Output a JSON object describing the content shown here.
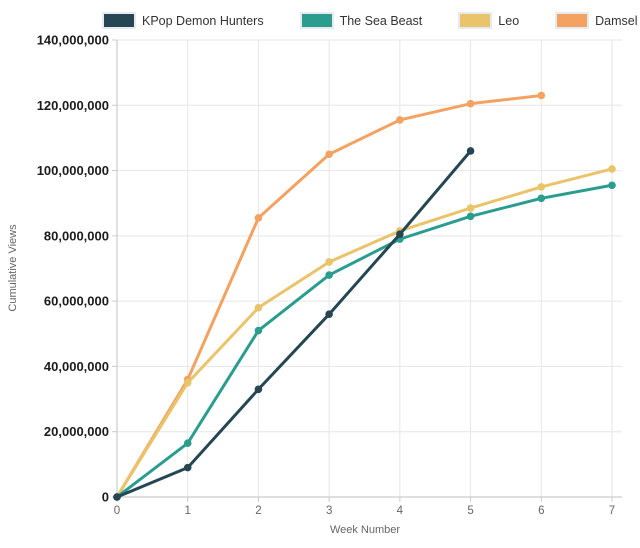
{
  "chart_data": {
    "type": "line",
    "title": "",
    "xlabel": "Week Number",
    "ylabel": "Cumulative Views",
    "xlim": [
      0,
      7
    ],
    "ylim": [
      0,
      140000000
    ],
    "grid": true,
    "legend_position": "top",
    "x_ticks": [
      0,
      1,
      2,
      3,
      4,
      5,
      6,
      7
    ],
    "x_tick_labels": [
      "0",
      "1",
      "2",
      "3",
      "4",
      "5",
      "6",
      "7"
    ],
    "y_ticks": [
      0,
      20000000,
      40000000,
      60000000,
      80000000,
      100000000,
      120000000,
      140000000
    ],
    "y_tick_labels": [
      "0",
      "20,000,000",
      "40,000,000",
      "60,000,000",
      "80,000,000",
      "100,000,000",
      "120,000,000",
      "140,000,000"
    ],
    "series": [
      {
        "name": "KPop Demon Hunters",
        "color": "#264653",
        "x": [
          0,
          1,
          2,
          3,
          4,
          5
        ],
        "values": [
          0,
          9000000,
          33000000,
          56000000,
          80500000,
          106000000
        ]
      },
      {
        "name": "The Sea Beast",
        "color": "#2a9d8f",
        "x": [
          0,
          1,
          2,
          3,
          4,
          5,
          6,
          7
        ],
        "values": [
          0,
          16500000,
          51000000,
          68000000,
          79000000,
          86000000,
          91500000,
          95500000
        ]
      },
      {
        "name": "Leo",
        "color": "#e9c46a",
        "x": [
          0,
          1,
          2,
          3,
          4,
          5,
          6,
          7
        ],
        "values": [
          0,
          35000000,
          58000000,
          72000000,
          81500000,
          88500000,
          95000000,
          100500000
        ]
      },
      {
        "name": "Damsel",
        "color": "#f4a261",
        "x": [
          0,
          1,
          2,
          3,
          4,
          5,
          6
        ],
        "values": [
          0,
          36000000,
          85500000,
          105000000,
          115500000,
          120500000,
          123000000
        ]
      }
    ],
    "style": {
      "background": "#ffffff",
      "grid_color": "#e6e6e6",
      "axis_line_color": "#cccccc",
      "tick_mark_color": "#cccccc",
      "y_tick_label_color": "#1c1c1c",
      "x_tick_label_color": "#666666",
      "axis_title_color": "#666666"
    }
  }
}
